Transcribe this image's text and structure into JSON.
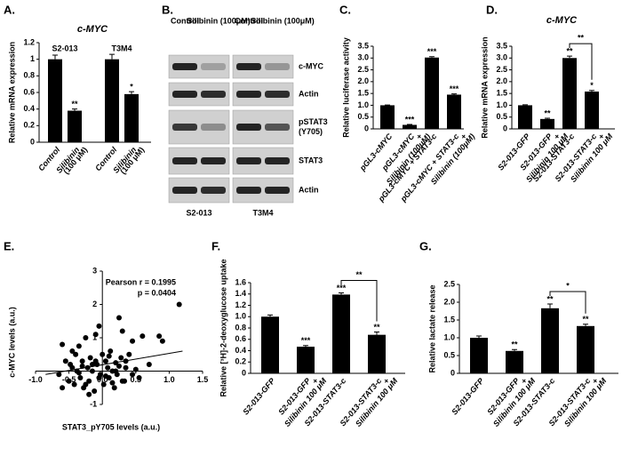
{
  "chart_data": [
    {
      "type": "bar",
      "panel": "A.",
      "title": "c-MYC",
      "y_label": "Relative mRNA expression",
      "groups": [
        "S2-013",
        "T3M4"
      ],
      "categories": [
        [
          "Control"
        ],
        [
          "Silibinin",
          "(100 μM)"
        ],
        [
          "Control"
        ],
        [
          "Silibinin",
          "(100 μM)"
        ]
      ],
      "values": [
        1.0,
        0.38,
        1.0,
        0.58
      ],
      "errors": [
        0.05,
        0.02,
        0.06,
        0.03
      ],
      "marks": [
        null,
        "**",
        null,
        "*"
      ],
      "color": "#000000",
      "ylim": [
        0,
        1.2
      ],
      "yticks": [
        0,
        0.2,
        0.4,
        0.6,
        0.8,
        1,
        1.2
      ]
    },
    {
      "type": "bar",
      "panel": "C.",
      "y_label": "Relative luciferase activity",
      "categories": [
        [
          "pGL3-cMYC"
        ],
        [
          "pGL3-cMYC",
          "+",
          "Silibinin (100μM)"
        ],
        [
          "pGL3-cMYC + STAT3-c"
        ],
        [
          "pGL3-cMYC + STAT3-c",
          "+",
          "Silibinin (100μM)"
        ]
      ],
      "values": [
        1.0,
        0.17,
        3.02,
        1.45
      ],
      "errors": [
        0.01,
        0.02,
        0.04,
        0.03
      ],
      "marks": [
        null,
        "***",
        "***",
        "***"
      ],
      "color": "#000000",
      "ylim": [
        0,
        3.5
      ],
      "yticks": [
        0,
        0.5,
        {
          "value": 1,
          "label": "1.0"
        },
        1.5,
        {
          "value": 2,
          "label": "2.0"
        },
        2.5,
        {
          "value": 3,
          "label": "3.0"
        },
        3.5
      ]
    },
    {
      "type": "bar",
      "panel": "D.",
      "title": "c-MYC",
      "y_label": "Relative mRNA expression",
      "categories": [
        [
          "S2-013-GFP"
        ],
        [
          "S2-013-GFP",
          "+",
          "Silibinin 100 μM"
        ],
        [
          "S2-013-STAT3-c"
        ],
        [
          "S2-013-STAT3-c",
          "+",
          "Silibinin 100 μM"
        ]
      ],
      "values": [
        1.0,
        0.42,
        3.0,
        1.58
      ],
      "errors": [
        0.02,
        0.03,
        0.08,
        0.05
      ],
      "marks": [
        null,
        "**",
        "**",
        "*"
      ],
      "bracket_label": "**",
      "color": "#000000",
      "ylim": [
        0,
        3.5
      ],
      "yticks": [
        0,
        0.5,
        {
          "value": 1,
          "label": "1.0"
        },
        1.5,
        {
          "value": 2,
          "label": "2.0"
        },
        2.5,
        {
          "value": 3,
          "label": "3.0"
        },
        3.5
      ]
    },
    {
      "type": "scatter",
      "panel": "E.",
      "x_label": "STAT3_pY705 levels (a.u.)",
      "y_label": "c-MYC levels (a.u.)",
      "annotations": [
        "Pearson r = 0.1995",
        "p = 0.0404"
      ],
      "x": [
        -0.65,
        -0.6,
        -0.55,
        -0.5,
        -0.48,
        -0.45,
        -0.42,
        -0.4,
        -0.38,
        -0.35,
        -0.33,
        -0.3,
        -0.28,
        -0.25,
        -0.22,
        -0.2,
        -0.18,
        -0.15,
        -0.12,
        -0.1,
        -0.08,
        -0.05,
        -0.03,
        0,
        0.02,
        0.05,
        0.08,
        0.1,
        0.12,
        0.15,
        0.18,
        0.2,
        0.22,
        0.25,
        0.28,
        0.3,
        0.33,
        0.35,
        0.4,
        0.45,
        0.5,
        0.55,
        0.6,
        0.7,
        0.85,
        0.9,
        1.15,
        -0.6,
        -0.35,
        -0.25,
        -0.05,
        0.25,
        0.3,
        0.45,
        -0.45,
        -0.3,
        -0.15,
        0.05,
        0.15,
        0.35,
        -0.2,
        0.1,
        -0.1,
        0.2
      ],
      "y": [
        -0.1,
        0.8,
        0.3,
        -0.3,
        0.2,
        0.1,
        -0.4,
        0.5,
        0.0,
        0.75,
        -0.2,
        0.3,
        -0.5,
        1.0,
        0.1,
        -0.3,
        0.4,
        0.0,
        -0.6,
        1.1,
        0.2,
        1.35,
        -0.1,
        0.5,
        -0.4,
        0.3,
        0.1,
        -0.2,
        0.6,
        0.0,
        -0.5,
        0.25,
        -0.1,
        1.6,
        0.4,
        1.2,
        -0.3,
        0.1,
        0.5,
        0.9,
        0.05,
        -0.2,
        1.05,
        0.2,
        1.05,
        0.9,
        2.0,
        -0.5,
        -0.05,
        -0.4,
        -0.2,
        0.15,
        -0.3,
        -0.1,
        0.6,
        0.15,
        0.2,
        -0.15,
        -0.35,
        0.3,
        -0.7,
        0.45,
        0.3,
        0.0
      ],
      "trendline": {
        "x": [
          -0.85,
          1.2
        ],
        "y": [
          -0.1,
          0.6
        ]
      },
      "color": "#000000",
      "xlim": [
        -1,
        1.5
      ],
      "xticks": [
        {
          "value": -1,
          "label": "-1.0"
        },
        -0.5,
        {
          "value": 0,
          "label": "0.0"
        },
        0.5,
        {
          "value": 1,
          "label": "1.0"
        },
        1.5
      ],
      "ylim": [
        -1,
        3
      ],
      "yticks": [
        -1,
        1,
        2,
        3
      ]
    },
    {
      "type": "bar",
      "panel": "F.",
      "y_label": "Relative [³H]-2-deoxyglucose uptake",
      "categories": [
        [
          "S2-013-GFP"
        ],
        [
          "S2-013-GFP",
          "+",
          "Silibinin 100 μM"
        ],
        [
          "S2-013-STAT3-c"
        ],
        [
          "S2-013-STAT3-c",
          "+",
          "Silibinin 100 μM"
        ]
      ],
      "values": [
        1.0,
        0.47,
        1.39,
        0.68
      ],
      "errors": [
        0.03,
        0.02,
        0.03,
        0.05
      ],
      "marks": [
        null,
        "***",
        "***",
        "**"
      ],
      "bracket_label": "**",
      "color": "#000000",
      "ylim": [
        0,
        1.6
      ],
      "yticks": [
        0,
        0.2,
        0.4,
        0.6,
        0.8,
        {
          "value": 1,
          "label": "1.0"
        },
        1.2,
        1.4,
        1.6
      ]
    },
    {
      "type": "bar",
      "panel": "G.",
      "y_label": "Relative lactate release",
      "categories": [
        [
          "S2-013-GFP"
        ],
        [
          "S2-013-GFP",
          "+",
          "Silibinin 100 μM"
        ],
        [
          "S2-013-STAT3-c"
        ],
        [
          "S2-013-STAT3-c",
          "+",
          "Silibinin 100 μM"
        ]
      ],
      "values": [
        1.0,
        0.63,
        1.83,
        1.33
      ],
      "errors": [
        0.05,
        0.04,
        0.12,
        0.05
      ],
      "marks": [
        null,
        "**",
        "**",
        "**"
      ],
      "bracket_label": "*",
      "color": "#000000",
      "ylim": [
        0,
        2.5
      ],
      "yticks": [
        0,
        0.5,
        {
          "value": 1,
          "label": "1.0"
        },
        1.5,
        {
          "value": 2,
          "label": "2.0"
        },
        2.5
      ]
    }
  ],
  "blot": {
    "panel": "B.",
    "lane_headers": [
      "Control",
      "Silibinin (100μM)",
      "Control",
      "Silibinin (100μM)"
    ],
    "rows": [
      [
        "c-MYC"
      ],
      [
        "Actin"
      ],
      [
        "pSTAT3",
        "(Y705)"
      ],
      [
        "STAT3"
      ],
      [
        "Actin"
      ]
    ],
    "cell_lines": [
      "S2-013",
      "T3M4"
    ]
  }
}
